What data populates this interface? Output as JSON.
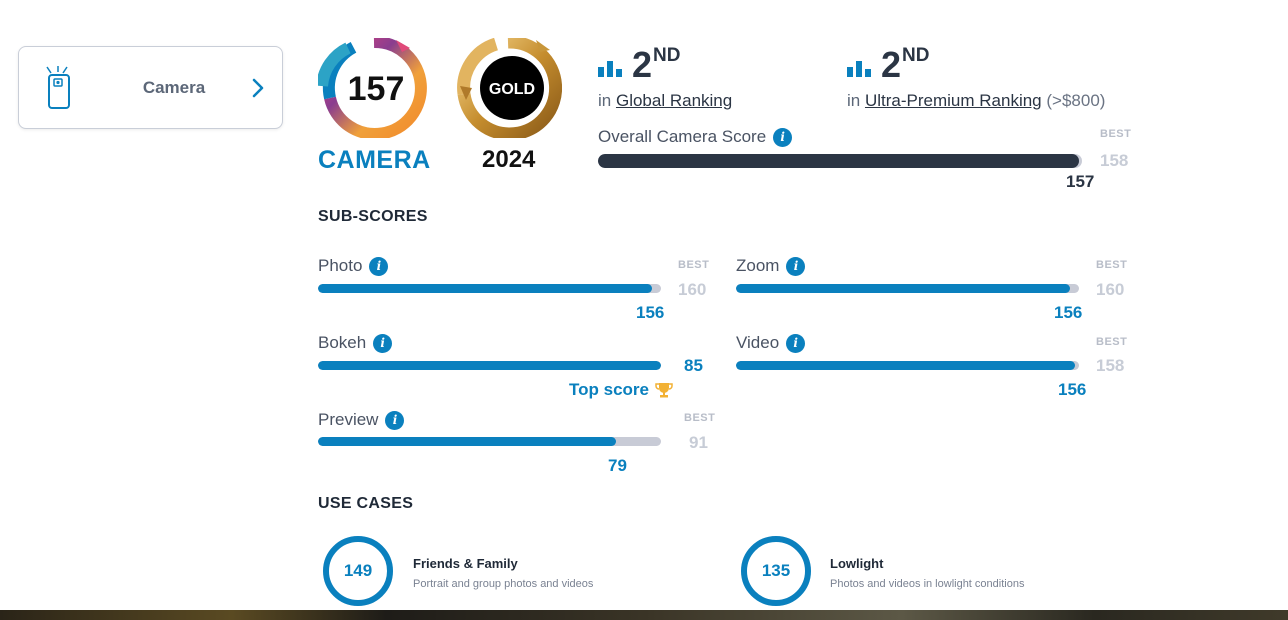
{
  "side_tab": {
    "label": "Camera"
  },
  "badge": {
    "score": "157",
    "caption": "CAMERA",
    "award": "GOLD",
    "year": "2024"
  },
  "rankings": [
    {
      "position": "2",
      "suffix": "ND",
      "prefix": "in",
      "link": "Global Ranking",
      "extra": ""
    },
    {
      "position": "2",
      "suffix": "ND",
      "prefix": "in",
      "link": "Ultra-Premium Ranking",
      "extra": "(>$800)"
    }
  ],
  "overall": {
    "label": "Overall Camera Score",
    "best_label": "BEST",
    "best": "158",
    "score": "157",
    "score_fraction": 0.994
  },
  "sub_scores_title": "SUB-SCORES",
  "sub_scores": [
    {
      "name": "Photo",
      "best_label": "BEST",
      "best": "160",
      "score": "156",
      "fraction": 0.975
    },
    {
      "name": "Zoom",
      "best_label": "BEST",
      "best": "160",
      "score": "156",
      "fraction": 0.975
    },
    {
      "name": "Bokeh",
      "score": "85",
      "fraction": 1.0,
      "top_label": "Top score"
    },
    {
      "name": "Video",
      "best_label": "BEST",
      "best": "158",
      "score": "156",
      "fraction": 0.987
    },
    {
      "name": "Preview",
      "best_label": "BEST",
      "best": "91",
      "score": "79",
      "fraction": 0.868
    }
  ],
  "use_cases_title": "USE CASES",
  "use_cases": [
    {
      "score": "149",
      "title": "Friends & Family",
      "desc": "Portrait and group photos and videos"
    },
    {
      "score": "135",
      "title": "Lowlight",
      "desc": "Photos and videos in lowlight conditions"
    }
  ],
  "colors": {
    "accent": "#0a80be",
    "dark": "#2b3544",
    "track": "#c8cbd6",
    "gold": "#c9983a"
  },
  "icons": {
    "info": "info-icon",
    "rank": "bar-chart-icon",
    "chevron": "chevron-right-icon",
    "phone": "phone-camera-icon",
    "trophy": "trophy-icon"
  }
}
